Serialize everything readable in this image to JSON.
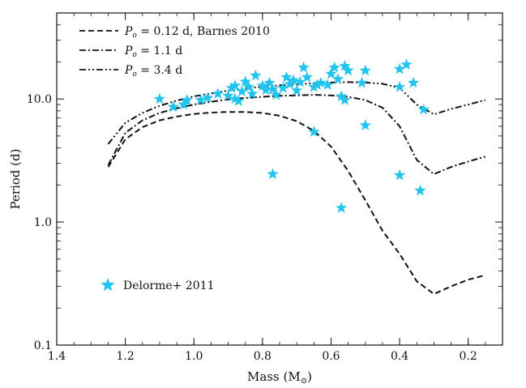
{
  "chart_data": {
    "type": "scatter",
    "xlabel": "Mass (M",
    "xlabel_sub": "⊙",
    "xlabel_close": ")",
    "ylabel": "Period (d)",
    "x_axis": {
      "range": [
        1.4,
        0.1
      ],
      "reversed": true,
      "ticks": [
        1.4,
        1.2,
        1.0,
        0.8,
        0.6,
        0.4,
        0.2
      ],
      "tick_labels": [
        "1.4",
        "1.2",
        "1.0",
        "0.8",
        "0.6",
        "0.4",
        "0.2"
      ]
    },
    "y_axis": {
      "scale": "log",
      "range": [
        0.1,
        50
      ],
      "ticks": [
        0.1,
        1.0,
        10.0
      ],
      "tick_labels": [
        "0.1",
        "1.0",
        "10.0"
      ]
    },
    "legend": {
      "placement": "top-left",
      "lines": [
        {
          "label_prefix": "P",
          "label_sub": "o",
          "label_rest": " = 0.12 d, Barnes 2010",
          "dash": "dashed"
        },
        {
          "label_prefix": "P",
          "label_sub": "o",
          "label_rest": " = 1.1 d",
          "dash": "dashdot"
        },
        {
          "label_prefix": "P",
          "label_sub": "o",
          "label_rest": " = 3.4 d",
          "dash": "dashdotdot"
        }
      ],
      "marker": {
        "label": "Delorme+ 2011",
        "placement": "bottom-left"
      }
    },
    "colors": {
      "stars": "#22c4ee",
      "lines": "#111111"
    },
    "series": [
      {
        "name": "P_o = 0.12 d, Barnes 2010",
        "style": "dashed",
        "x": [
          1.25,
          1.2,
          1.15,
          1.1,
          1.05,
          1.0,
          0.95,
          0.9,
          0.85,
          0.8,
          0.75,
          0.7,
          0.65,
          0.6,
          0.55,
          0.5,
          0.45,
          0.4,
          0.35,
          0.3,
          0.25,
          0.2,
          0.15
        ],
        "y": [
          2.8,
          4.7,
          5.9,
          6.7,
          7.2,
          7.55,
          7.75,
          7.85,
          7.85,
          7.7,
          7.3,
          6.6,
          5.5,
          4.1,
          2.6,
          1.5,
          0.85,
          0.55,
          0.33,
          0.26,
          0.3,
          0.34,
          0.37
        ]
      },
      {
        "name": "P_o = 1.1 d",
        "style": "dashdot",
        "x": [
          1.25,
          1.2,
          1.15,
          1.1,
          1.05,
          1.0,
          0.95,
          0.9,
          0.85,
          0.8,
          0.75,
          0.7,
          0.65,
          0.6,
          0.55,
          0.5,
          0.45,
          0.4,
          0.35,
          0.3,
          0.25,
          0.2,
          0.15
        ],
        "y": [
          2.9,
          5.3,
          6.7,
          7.7,
          8.4,
          9.0,
          9.5,
          9.9,
          10.2,
          10.4,
          10.6,
          10.7,
          10.8,
          10.7,
          10.4,
          9.8,
          8.5,
          6.0,
          3.2,
          2.45,
          2.8,
          3.1,
          3.4
        ]
      },
      {
        "name": "P_o = 3.4 d",
        "style": "dashdotdot",
        "x": [
          1.25,
          1.2,
          1.15,
          1.1,
          1.05,
          1.0,
          0.95,
          0.9,
          0.85,
          0.8,
          0.75,
          0.7,
          0.65,
          0.6,
          0.55,
          0.5,
          0.45,
          0.4,
          0.35,
          0.3,
          0.25,
          0.2,
          0.15
        ],
        "y": [
          4.3,
          6.4,
          7.7,
          8.8,
          9.7,
          10.5,
          11.1,
          11.7,
          12.2,
          12.6,
          12.9,
          13.2,
          13.4,
          13.6,
          13.7,
          13.6,
          13.3,
          12.3,
          9.0,
          7.5,
          8.3,
          9.0,
          9.8
        ]
      },
      {
        "name": "Delorme+ 2011",
        "style": "star",
        "points": [
          [
            1.1,
            10.0
          ],
          [
            1.06,
            8.6
          ],
          [
            1.03,
            9.0
          ],
          [
            1.02,
            9.8
          ],
          [
            0.98,
            9.8
          ],
          [
            0.96,
            10.2
          ],
          [
            0.93,
            11.0
          ],
          [
            0.9,
            10.6
          ],
          [
            0.89,
            12.3
          ],
          [
            0.88,
            10.0
          ],
          [
            0.88,
            12.8
          ],
          [
            0.87,
            9.6
          ],
          [
            0.86,
            11.5
          ],
          [
            0.85,
            13.8
          ],
          [
            0.84,
            12.5
          ],
          [
            0.83,
            11.0
          ],
          [
            0.82,
            15.5
          ],
          [
            0.8,
            12.8
          ],
          [
            0.79,
            11.8
          ],
          [
            0.78,
            13.5
          ],
          [
            0.77,
            12.0
          ],
          [
            0.76,
            10.8
          ],
          [
            0.74,
            12.3
          ],
          [
            0.73,
            15.0
          ],
          [
            0.72,
            13.2
          ],
          [
            0.71,
            14.2
          ],
          [
            0.7,
            11.7
          ],
          [
            0.69,
            13.7
          ],
          [
            0.68,
            18.0
          ],
          [
            0.67,
            15.0
          ],
          [
            0.65,
            12.5
          ],
          [
            0.64,
            13.0
          ],
          [
            0.63,
            13.5
          ],
          [
            0.61,
            13.0
          ],
          [
            0.6,
            16.0
          ],
          [
            0.59,
            18.0
          ],
          [
            0.58,
            14.5
          ],
          [
            0.57,
            10.5
          ],
          [
            0.56,
            9.8
          ],
          [
            0.55,
            17.0
          ],
          [
            0.56,
            18.5
          ],
          [
            0.51,
            13.5
          ],
          [
            0.5,
            17.0
          ],
          [
            0.4,
            17.5
          ],
          [
            0.38,
            19.0
          ],
          [
            0.4,
            12.5
          ],
          [
            0.36,
            13.5
          ],
          [
            0.33,
            8.2
          ],
          [
            0.77,
            2.45
          ],
          [
            0.65,
            5.4
          ],
          [
            0.57,
            1.3
          ],
          [
            0.5,
            6.1
          ],
          [
            0.4,
            2.4
          ],
          [
            0.34,
            1.8
          ]
        ]
      }
    ]
  }
}
